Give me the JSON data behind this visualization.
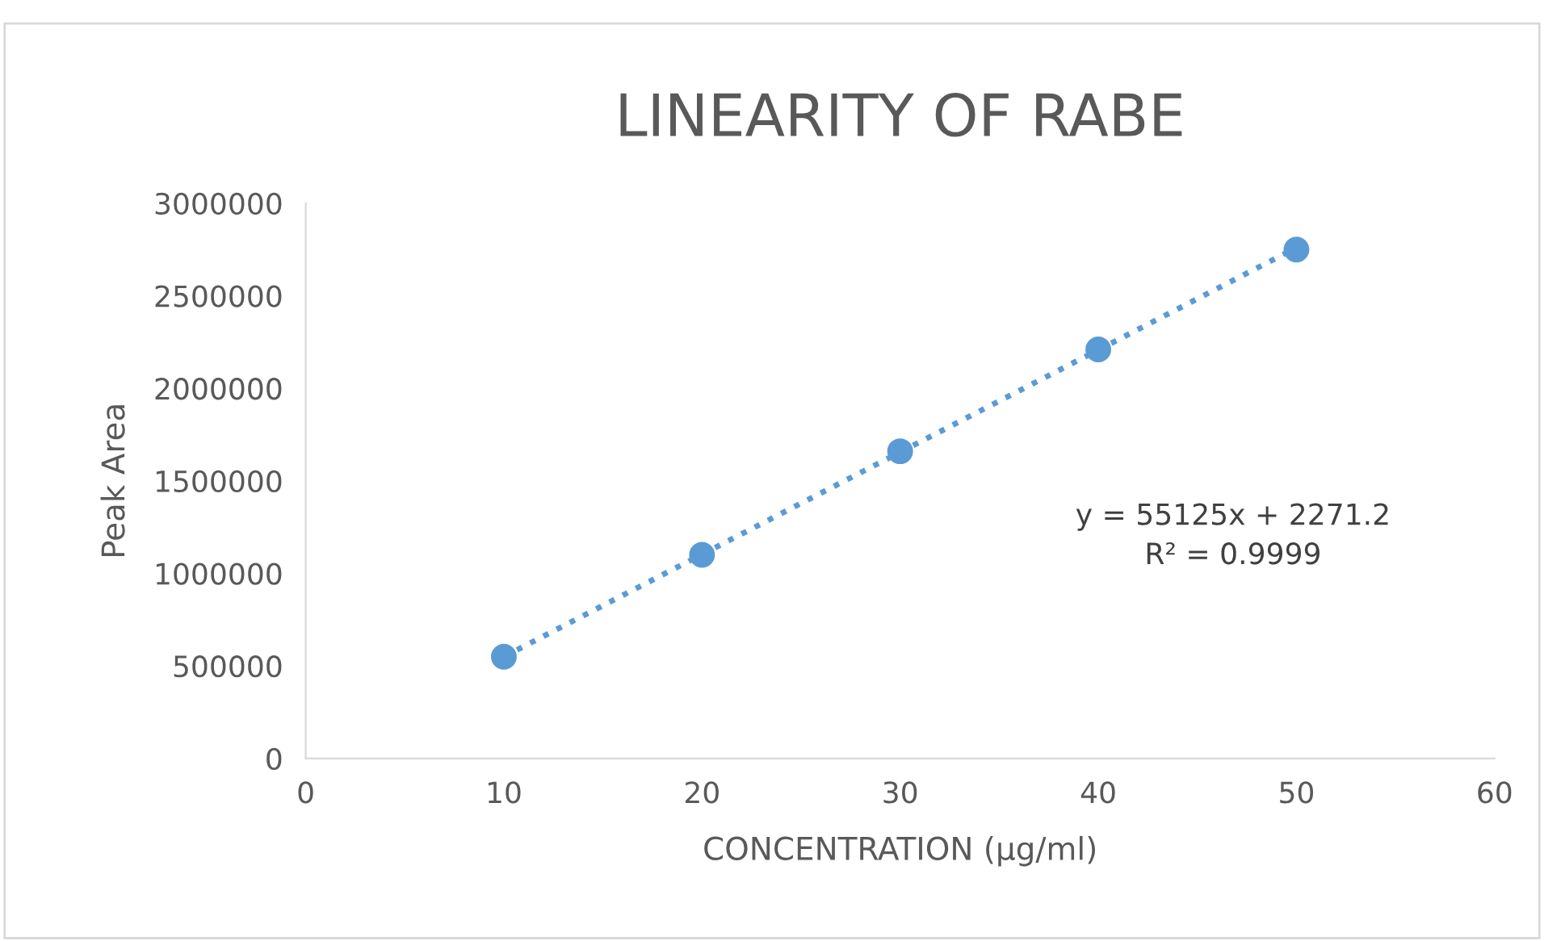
{
  "chart_data": {
    "type": "scatter",
    "title": "LINEARITY OF RABE",
    "xlabel": "CONCENTRATION (µg/ml)",
    "ylabel": "Peak Area",
    "series": [
      {
        "color": "#5b9bd5",
        "x": [
          10,
          20,
          30,
          40,
          50
        ],
        "values": [
          550000,
          1100000,
          1660000,
          2210000,
          2750000
        ],
        "marker": "circle"
      },
      {
        "type": "line",
        "color": "#5b9bd5",
        "x": [
          10,
          50
        ],
        "values": [
          550000,
          2760000
        ],
        "line_style": "dotted",
        "marker": "none"
      }
    ],
    "annotations": [
      "y = 55125x + 2271.2",
      "R² = 0.9999"
    ],
    "xlim": [
      0,
      60
    ],
    "xticks": [
      0,
      10,
      20,
      30,
      40,
      50,
      60
    ],
    "ylim": [
      0,
      3000000
    ],
    "yticks": [
      0,
      500000,
      1000000,
      1500000,
      2000000,
      2500000,
      3000000
    ],
    "grid": false,
    "legend": false
  }
}
